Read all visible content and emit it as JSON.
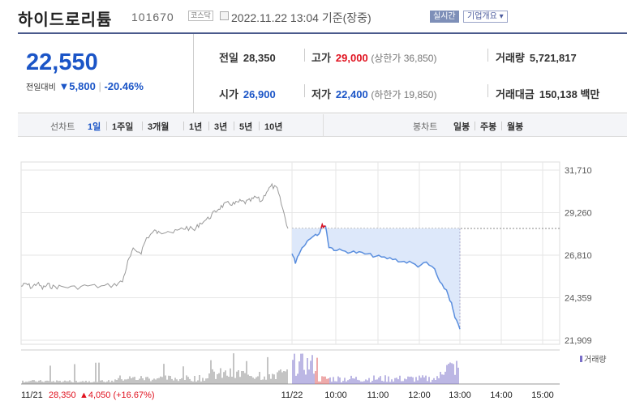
{
  "header": {
    "name": "하이드로리튬",
    "code": "101670",
    "market": "코스닥",
    "datetime": "2022.11.22 13:04 기준(장중)",
    "live_label": "실시간",
    "corp_label": "기업개요"
  },
  "price": {
    "current": "22,550",
    "change_label": "전일대비",
    "change": "▼5,800",
    "change_pct": "-20.46%"
  },
  "summary": {
    "prev_label": "전일",
    "prev": "28,350",
    "high_label": "고가",
    "high": "29,000",
    "upper_limit": "(상한가 36,850)",
    "volume_label": "거래량",
    "volume": "5,721,817",
    "open_label": "시가",
    "open": "26,900",
    "low_label": "저가",
    "low": "22,400",
    "lower_limit": "(하한가 19,850)",
    "amount_label": "거래대금",
    "amount": "150,138 백만"
  },
  "toolbar": {
    "line_label": "선차트",
    "line_periods": [
      "1일",
      "1주일",
      "3개월",
      "1년",
      "3년",
      "5년",
      "10년"
    ],
    "candle_label": "봉차트",
    "candle_periods": [
      "일봉",
      "주봉",
      "월봉"
    ],
    "selected": "1일"
  },
  "chart_data": {
    "type": "line",
    "y_ticks": [
      "31,710",
      "29,260",
      "26,810",
      "24,359",
      "21,909"
    ],
    "ylim": [
      21909,
      31710
    ],
    "prev_close": 28350,
    "x_labels": [
      "11/22",
      "10:00",
      "11:00",
      "12:00",
      "13:00",
      "14:00",
      "15:00"
    ],
    "prev_day_label": "11/21",
    "prev_day_close": "28,350",
    "prev_day_change": "▲4,050 (+16.67%)",
    "volume_label": "거래량",
    "prev_day_series": [
      [
        0,
        25020
      ],
      [
        0.02,
        25150
      ],
      [
        0.04,
        24950
      ],
      [
        0.06,
        25200
      ],
      [
        0.08,
        24900
      ],
      [
        0.1,
        25100
      ],
      [
        0.12,
        24980
      ],
      [
        0.15,
        25000
      ],
      [
        0.2,
        24950
      ],
      [
        0.25,
        25050
      ],
      [
        0.3,
        25000
      ],
      [
        0.35,
        25100
      ],
      [
        0.38,
        25300
      ],
      [
        0.4,
        26400
      ],
      [
        0.42,
        27100
      ],
      [
        0.45,
        27000
      ],
      [
        0.47,
        27800
      ],
      [
        0.5,
        28200
      ],
      [
        0.52,
        28050
      ],
      [
        0.55,
        28300
      ],
      [
        0.57,
        28100
      ],
      [
        0.6,
        28300
      ],
      [
        0.62,
        28400
      ],
      [
        0.65,
        28250
      ],
      [
        0.67,
        28650
      ],
      [
        0.7,
        28900
      ],
      [
        0.72,
        29200
      ],
      [
        0.74,
        29500
      ],
      [
        0.76,
        29700
      ],
      [
        0.78,
        29800
      ],
      [
        0.8,
        29750
      ],
      [
        0.82,
        29900
      ],
      [
        0.84,
        29850
      ],
      [
        0.86,
        29950
      ],
      [
        0.88,
        30150
      ],
      [
        0.9,
        29900
      ],
      [
        0.92,
        30500
      ],
      [
        0.94,
        30800
      ],
      [
        0.96,
        30600
      ],
      [
        0.98,
        29500
      ],
      [
        1.0,
        28350
      ]
    ],
    "today_series": [
      [
        0,
        26900
      ],
      [
        0.02,
        26400
      ],
      [
        0.04,
        26900
      ],
      [
        0.07,
        27400
      ],
      [
        0.1,
        27700
      ],
      [
        0.13,
        28000
      ],
      [
        0.16,
        28050
      ],
      [
        0.18,
        28500
      ],
      [
        0.2,
        28500
      ],
      [
        0.22,
        27300
      ],
      [
        0.25,
        27150
      ],
      [
        0.3,
        27050
      ],
      [
        0.35,
        27000
      ],
      [
        0.4,
        26950
      ],
      [
        0.45,
        26850
      ],
      [
        0.5,
        26750
      ],
      [
        0.55,
        26650
      ],
      [
        0.6,
        26600
      ],
      [
        0.65,
        26450
      ],
      [
        0.7,
        26400
      ],
      [
        0.75,
        26200
      ],
      [
        0.8,
        26350
      ],
      [
        0.85,
        26000
      ],
      [
        0.88,
        25200
      ],
      [
        0.92,
        24800
      ],
      [
        0.95,
        24000
      ],
      [
        0.97,
        23200
      ],
      [
        1.0,
        22550
      ]
    ]
  },
  "colors": {
    "up": "#e0121f",
    "down": "#1b55c7",
    "line": "#5a8ede",
    "fill": "#dde8fa",
    "grid": "#e6e6e6",
    "border": "#4a5a8c"
  }
}
